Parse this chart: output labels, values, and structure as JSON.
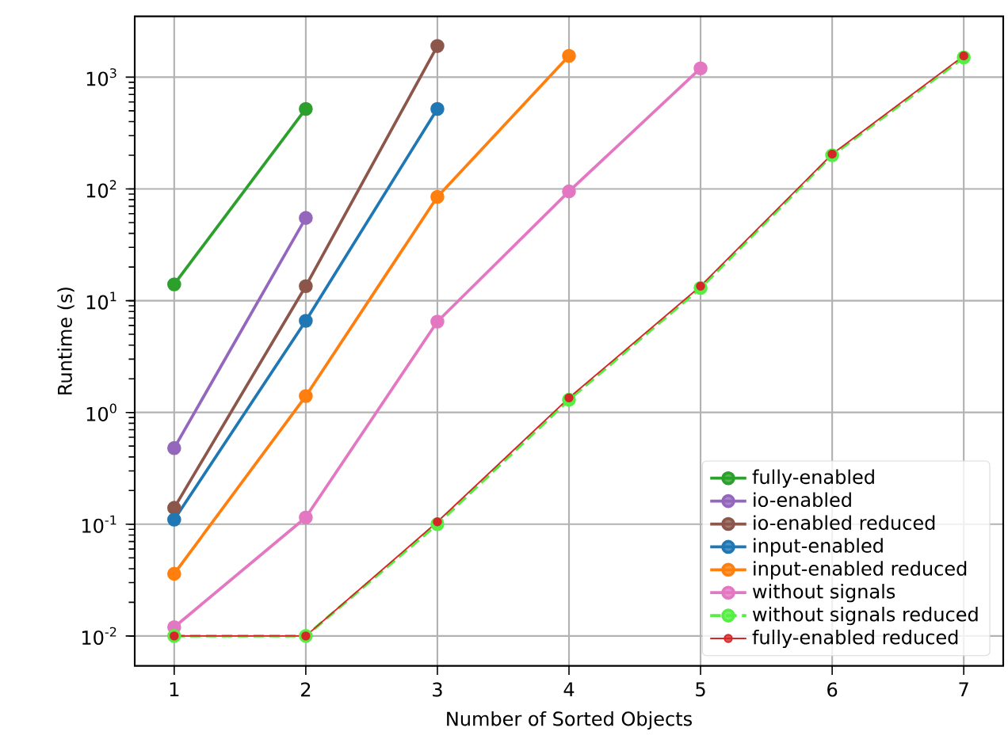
{
  "chart_data": {
    "type": "line",
    "xlabel": "Number of Sorted Objects",
    "ylabel": "Runtime (s)",
    "x": [
      1,
      2,
      3,
      4,
      5,
      6,
      7
    ],
    "xlim": [
      0.7,
      7.3
    ],
    "xticks": [
      1,
      2,
      3,
      4,
      5,
      6,
      7
    ],
    "ylim": [
      0.0054,
      3500
    ],
    "log": "y",
    "yticks": [
      {
        "value": 0.01,
        "label": "10$^{-2}$"
      },
      {
        "value": 0.1,
        "label": "10$^{-1}$"
      },
      {
        "value": 1,
        "label": "10$^{0}$"
      },
      {
        "value": 10,
        "label": "10$^{1}$"
      },
      {
        "value": 100,
        "label": "10$^{2}$"
      },
      {
        "value": 1000,
        "label": "10$^{3}$"
      }
    ],
    "grid": true,
    "legend": "bottom right",
    "marker": "circle",
    "series": [
      {
        "name": "fully-enabled",
        "color": "#2ca02c",
        "values": [
          14,
          520,
          null,
          null,
          null,
          null,
          null
        ]
      },
      {
        "name": "io-enabled",
        "color": "#9467bd",
        "values": [
          0.48,
          55,
          null,
          null,
          null,
          null,
          null
        ]
      },
      {
        "name": "io-enabled reduced",
        "color": "#8c564b",
        "values": [
          0.14,
          13.5,
          1900,
          null,
          null,
          null,
          null
        ]
      },
      {
        "name": "input-enabled",
        "color": "#1f77b4",
        "values": [
          0.11,
          6.6,
          520,
          null,
          null,
          null,
          null
        ]
      },
      {
        "name": "input-enabled reduced",
        "color": "#ff7f0e",
        "values": [
          0.036,
          1.4,
          85,
          1550,
          null,
          null,
          null
        ]
      },
      {
        "name": "without signals",
        "color": "#e377c2",
        "values": [
          0.012,
          0.115,
          6.5,
          95,
          1200,
          null,
          null
        ]
      },
      {
        "name": "without signals reduced",
        "color": "#55ee44",
        "line_style": "dashed",
        "values": [
          0.01,
          0.01,
          0.1,
          1.3,
          13,
          200,
          1500
        ]
      },
      {
        "name": "fully-enabled reduced",
        "color": "#d62728",
        "values": [
          0.01,
          0.01,
          0.105,
          1.35,
          13.5,
          205,
          1550
        ]
      }
    ]
  }
}
